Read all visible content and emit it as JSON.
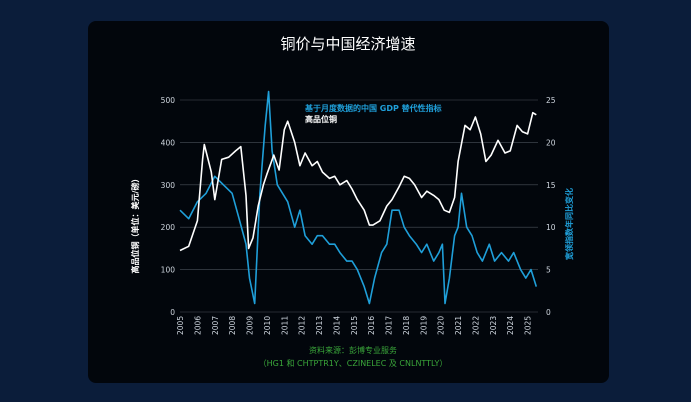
{
  "chart_data": {
    "type": "line",
    "title": "铜价与中国经济增速",
    "ylabel_left": "高品位铜（单位：美元/磅）",
    "ylabel_right": "宽领指数年同比变化",
    "ylim_left": [
      0,
      500
    ],
    "ylim_right": [
      0,
      25
    ],
    "yticks_left": [
      "0",
      "100",
      "200",
      "300",
      "400",
      "500"
    ],
    "yticks_right": [
      "0",
      "5",
      "10",
      "15",
      "20",
      "25"
    ],
    "x_categories": [
      "2005",
      "2006",
      "2007",
      "2008",
      "2009",
      "2010",
      "2011",
      "2012",
      "2013",
      "2014",
      "2015",
      "2016",
      "2017",
      "2018",
      "2019",
      "2020",
      "2021",
      "2022",
      "2023",
      "2024",
      "2025"
    ],
    "legend": [
      {
        "name": "基于月度数据的中国 GDP 替代性指标",
        "color": "#1f9fd9"
      },
      {
        "name": "高品位铜",
        "color": "#ffffff"
      }
    ],
    "grid": true,
    "source_line1": "资料来源：彭博专业服务",
    "source_line2": "（HG1 和 CHTPTR1Y、CZINELEC 及 CNLNTTLY）",
    "series": [
      {
        "name": "高品位铜",
        "axis": "left",
        "color": "#ffffff",
        "x": [
          2005.0,
          2005.5,
          2006.0,
          2006.3,
          2006.4,
          2006.8,
          2007.0,
          2007.4,
          2007.8,
          2008.2,
          2008.5,
          2008.8,
          2008.95,
          2009.2,
          2009.5,
          2009.8,
          2010.0,
          2010.4,
          2010.7,
          2011.0,
          2011.2,
          2011.6,
          2011.9,
          2012.2,
          2012.6,
          2012.9,
          2013.2,
          2013.6,
          2013.9,
          2014.2,
          2014.6,
          2014.9,
          2015.2,
          2015.6,
          2015.9,
          2016.1,
          2016.5,
          2016.9,
          2017.2,
          2017.6,
          2017.9,
          2018.2,
          2018.5,
          2018.9,
          2019.2,
          2019.6,
          2019.9,
          2020.2,
          2020.5,
          2020.8,
          2021.0,
          2021.4,
          2021.7,
          2022.0,
          2022.3,
          2022.6,
          2022.9,
          2023.3,
          2023.7,
          2024.0,
          2024.4,
          2024.7,
          2025.0,
          2025.3,
          2025.5
        ],
        "values": [
          145,
          155,
          215,
          360,
          395,
          330,
          265,
          360,
          365,
          380,
          390,
          275,
          150,
          175,
          250,
          300,
          325,
          370,
          335,
          430,
          450,
          400,
          345,
          375,
          345,
          355,
          330,
          315,
          320,
          300,
          310,
          290,
          265,
          240,
          205,
          205,
          215,
          250,
          265,
          295,
          320,
          315,
          300,
          270,
          285,
          275,
          265,
          240,
          235,
          270,
          355,
          440,
          430,
          460,
          420,
          355,
          370,
          405,
          375,
          380,
          440,
          425,
          420,
          470,
          465
        ]
      },
      {
        "name": "基于月度数据的中国 GDP 替代性指标",
        "axis": "right",
        "color": "#1f9fd9",
        "x": [
          2005.0,
          2005.5,
          2006.0,
          2006.5,
          2007.0,
          2007.5,
          2008.0,
          2008.4,
          2008.8,
          2009.0,
          2009.3,
          2009.6,
          2009.9,
          2010.1,
          2010.3,
          2010.6,
          2010.9,
          2011.2,
          2011.6,
          2011.9,
          2012.2,
          2012.6,
          2012.9,
          2013.2,
          2013.6,
          2013.9,
          2014.2,
          2014.6,
          2014.9,
          2015.2,
          2015.6,
          2015.9,
          2016.2,
          2016.6,
          2016.9,
          2017.2,
          2017.6,
          2017.9,
          2018.2,
          2018.6,
          2018.9,
          2019.2,
          2019.6,
          2019.9,
          2020.1,
          2020.25,
          2020.5,
          2020.8,
          2021.0,
          2021.2,
          2021.5,
          2021.8,
          2022.1,
          2022.4,
          2022.8,
          2023.1,
          2023.5,
          2023.9,
          2024.2,
          2024.6,
          2024.9,
          2025.2,
          2025.5
        ],
        "values": [
          12,
          11,
          13,
          14,
          16,
          15,
          14,
          11,
          8,
          4,
          1,
          14,
          22,
          26,
          19,
          15,
          14,
          13,
          10,
          12,
          9,
          8,
          9,
          9,
          8,
          8,
          7,
          6,
          6,
          5,
          3,
          1,
          4,
          7,
          8,
          12,
          12,
          10,
          9,
          8,
          7,
          8,
          6,
          7,
          8,
          1,
          4,
          9,
          10,
          14,
          10,
          9,
          7,
          6,
          8,
          6,
          7,
          6,
          7,
          5,
          4,
          5,
          3
        ]
      }
    ]
  }
}
